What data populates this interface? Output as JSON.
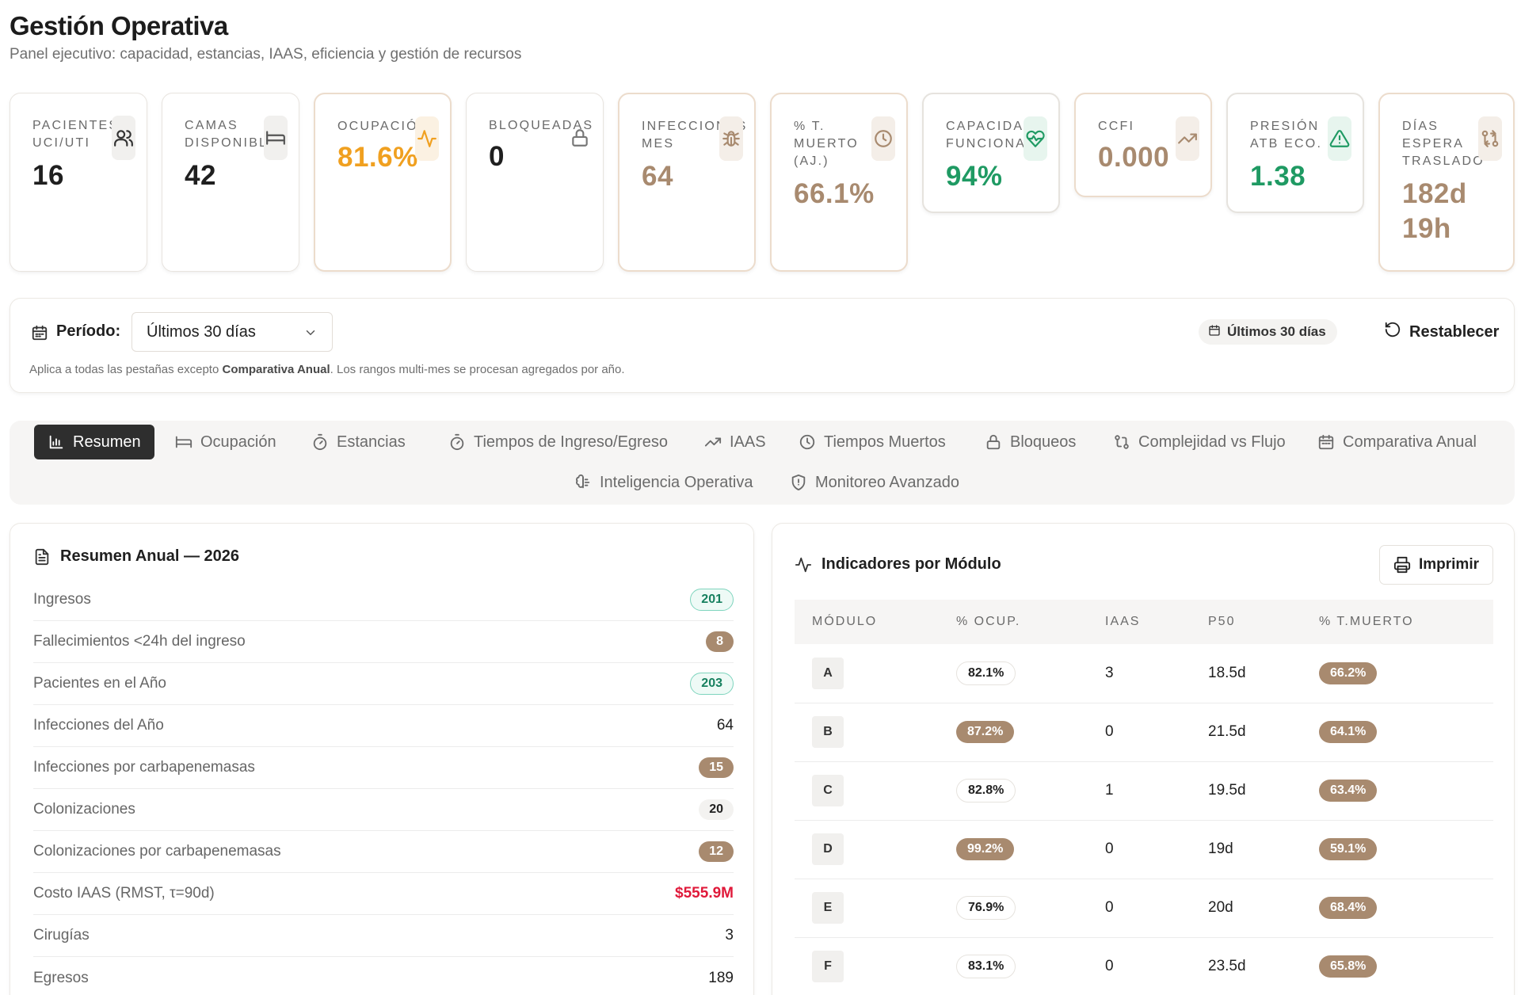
{
  "header": {
    "title": "Gestión Operativa",
    "subtitle": "Panel ejecutivo: capacidad, estancias, IAAS, eficiencia y gestión de recursos"
  },
  "kpis": [
    {
      "label": "Pacientes UCI/UTI",
      "value": "16",
      "icon": "users-icon",
      "color": "#1f1f1f"
    },
    {
      "label": "Camas Disponibles",
      "value": "42",
      "icon": "bed-icon",
      "color": "#1f1f1f"
    },
    {
      "label": "Ocupación",
      "value": "81.6%",
      "icon": "activity-icon",
      "color": "#f0a020"
    },
    {
      "label": "Bloqueadas",
      "value": "0",
      "icon": "lock-icon",
      "color": "#1f1f1f"
    },
    {
      "label": "Infecciones Mes",
      "value": "64",
      "icon": "bug-icon",
      "color": "#a88a6f"
    },
    {
      "label": "% T. Muerto (Aj.)",
      "value": "66.1%",
      "icon": "clock-icon",
      "color": "#a88a6f"
    },
    {
      "label": "Capacidad Funcional",
      "value": "94%",
      "icon": "heart-pulse-icon",
      "color": "#1f9a63"
    },
    {
      "label": "CCFI",
      "value": "0.000",
      "icon": "trending-up-icon",
      "color": "#a88a6f"
    },
    {
      "label": "Presión ATB Eco.",
      "value": "1.38",
      "icon": "alert-triangle-icon",
      "color": "#1f9a63"
    },
    {
      "label": "Días Espera Traslado",
      "value": "182d 19h",
      "icon": "transfer-icon",
      "color": "#a88a6f"
    }
  ],
  "filter": {
    "label": "Período:",
    "selected": "Últimos 30 días",
    "note_prefix": "Aplica a todas las pestañas excepto ",
    "note_bold": "Comparativa Anual",
    "note_suffix": ". Los rangos multi-mes se procesan agregados por año.",
    "badge": "Últimos 30 días",
    "reset": "Restablecer"
  },
  "tabs": [
    {
      "label": "Resumen",
      "icon": "bar-chart-icon",
      "active": true
    },
    {
      "label": "Ocupación",
      "icon": "bed-icon"
    },
    {
      "label": "Estancias",
      "icon": "timer-icon"
    },
    {
      "label": "Tiempos de Ingreso/Egreso",
      "icon": "timer-icon"
    },
    {
      "label": "IAAS",
      "icon": "trending-up-icon"
    },
    {
      "label": "Tiempos Muertos",
      "icon": "clock-icon"
    },
    {
      "label": "Bloqueos",
      "icon": "lock-icon"
    },
    {
      "label": "Complejidad vs Flujo",
      "icon": "transfer-icon"
    },
    {
      "label": "Comparativa Anual",
      "icon": "calendar-icon"
    },
    {
      "label": "Inteligencia Operativa",
      "icon": "brain-icon"
    },
    {
      "label": "Monitoreo Avanzado",
      "icon": "shield-icon"
    }
  ],
  "summary": {
    "title": "Resumen Anual — 2026",
    "rows": [
      {
        "label": "Ingresos",
        "value": "201",
        "style": "green"
      },
      {
        "label": "Fallecimientos <24h del ingreso",
        "value": "8",
        "style": "brown"
      },
      {
        "label": "Pacientes en el Año",
        "value": "203",
        "style": "green"
      },
      {
        "label": "Infecciones del Año",
        "value": "64",
        "style": "plain"
      },
      {
        "label": "Infecciones por carbapenemasas",
        "value": "15",
        "style": "brown"
      },
      {
        "label": "Colonizaciones",
        "value": "20",
        "style": "gray"
      },
      {
        "label": "Colonizaciones por carbapenemasas",
        "value": "12",
        "style": "brown"
      },
      {
        "label": "Costo IAAS (RMST, τ=90d)",
        "value": "$555.9M",
        "style": "red"
      },
      {
        "label": "Cirugías",
        "value": "3",
        "style": "plain"
      },
      {
        "label": "Egresos",
        "value": "189",
        "style": "plain"
      }
    ]
  },
  "modules": {
    "title": "Indicadores por Módulo",
    "print": "Imprimir",
    "columns": [
      "Módulo",
      "% Ocup.",
      "IAAS",
      "P50",
      "% T.Muerto"
    ],
    "rows": [
      {
        "module": "A",
        "ocup": "82.1%",
        "ocup_style": "plain",
        "iaas": "3",
        "p50": "18.5d",
        "tmuerto": "66.2%"
      },
      {
        "module": "B",
        "ocup": "87.2%",
        "ocup_style": "brown",
        "iaas": "0",
        "p50": "21.5d",
        "tmuerto": "64.1%"
      },
      {
        "module": "C",
        "ocup": "82.8%",
        "ocup_style": "plain",
        "iaas": "1",
        "p50": "19.5d",
        "tmuerto": "63.4%"
      },
      {
        "module": "D",
        "ocup": "99.2%",
        "ocup_style": "brown",
        "iaas": "0",
        "p50": "19d",
        "tmuerto": "59.1%"
      },
      {
        "module": "E",
        "ocup": "76.9%",
        "ocup_style": "plain",
        "iaas": "0",
        "p50": "20d",
        "tmuerto": "68.4%"
      },
      {
        "module": "F",
        "ocup": "83.1%",
        "ocup_style": "plain",
        "iaas": "0",
        "p50": "23.5d",
        "tmuerto": "65.8%"
      }
    ]
  },
  "colors": {
    "accent_brown": "#a88a6f",
    "amber": "#f0a020",
    "green": "#1f9a63",
    "red": "#e0193a"
  }
}
